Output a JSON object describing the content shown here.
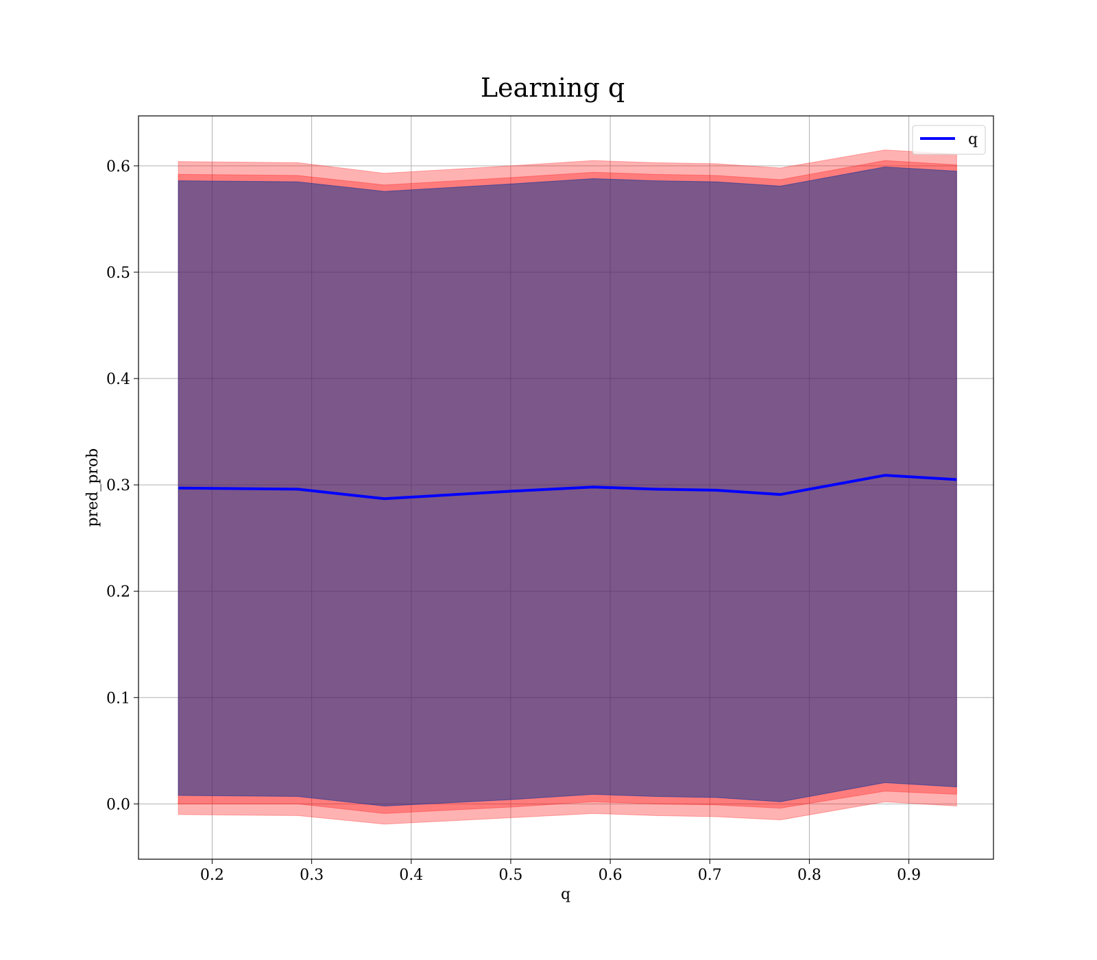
{
  "chart_data": {
    "type": "line",
    "title": "Learning q",
    "xlabel": "q",
    "ylabel": "pred_prob",
    "xlim": [
      0.126,
      0.985
    ],
    "ylim": [
      -0.052,
      0.647
    ],
    "xticks": [
      "0.2",
      "0.3",
      "0.4",
      "0.5",
      "0.6",
      "0.7",
      "0.8",
      "0.9"
    ],
    "yticks": [
      "0.0",
      "0.1",
      "0.2",
      "0.3",
      "0.4",
      "0.5",
      "0.6"
    ],
    "grid": true,
    "legend_position": "top-right",
    "x": [
      0.166,
      0.286,
      0.373,
      0.5,
      0.583,
      0.645,
      0.706,
      0.771,
      0.876,
      0.948
    ],
    "series": [
      {
        "name": "q",
        "type": "line",
        "color": "#0000ff",
        "values": [
          0.297,
          0.296,
          0.287,
          0.294,
          0.298,
          0.296,
          0.295,
          0.291,
          0.309,
          0.305
        ]
      }
    ],
    "bands": [
      {
        "color": "#ff0000",
        "opacity": 0.3,
        "lower": [
          -0.01,
          -0.011,
          -0.019,
          -0.013,
          -0.009,
          -0.011,
          -0.012,
          -0.015,
          0.002,
          -0.002
        ],
        "upper": [
          0.604,
          0.603,
          0.593,
          0.6,
          0.605,
          0.603,
          0.602,
          0.598,
          0.615,
          0.611
        ]
      },
      {
        "color": "#ff0000",
        "opacity": 0.3,
        "lower": [
          0.0,
          0.0,
          -0.009,
          -0.003,
          0.002,
          0.0,
          -0.001,
          -0.004,
          0.012,
          0.009
        ],
        "upper": [
          0.592,
          0.591,
          0.582,
          0.589,
          0.594,
          0.592,
          0.591,
          0.587,
          0.605,
          0.601
        ]
      },
      {
        "color": "#008000",
        "opacity": 0.3,
        "lower": [
          0.008,
          0.007,
          -0.002,
          0.004,
          0.009,
          0.007,
          0.006,
          0.002,
          0.02,
          0.016
        ],
        "upper": [
          0.586,
          0.585,
          0.576,
          0.583,
          0.588,
          0.586,
          0.585,
          0.581,
          0.599,
          0.595
        ]
      },
      {
        "color": "#0000ff",
        "opacity": 0.3,
        "lower": [
          0.008,
          0.007,
          -0.002,
          0.004,
          0.009,
          0.007,
          0.006,
          0.002,
          0.02,
          0.016
        ],
        "upper": [
          0.586,
          0.585,
          0.576,
          0.583,
          0.588,
          0.586,
          0.585,
          0.581,
          0.599,
          0.595
        ]
      }
    ]
  }
}
